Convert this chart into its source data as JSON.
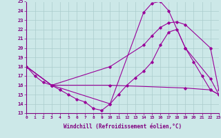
{
  "xlabel": "Windchill (Refroidissement éolien,°C)",
  "xlim": [
    0,
    23
  ],
  "ylim": [
    13,
    25
  ],
  "yticks": [
    13,
    14,
    15,
    16,
    17,
    18,
    19,
    20,
    21,
    22,
    23,
    24,
    25
  ],
  "xticks": [
    0,
    1,
    2,
    3,
    4,
    5,
    6,
    7,
    8,
    9,
    10,
    11,
    12,
    13,
    14,
    15,
    16,
    17,
    18,
    19,
    20,
    21,
    22,
    23
  ],
  "bg_color": "#cce8e8",
  "line_color": "#990099",
  "grid_color": "#aacccc",
  "lines": [
    {
      "x": [
        0,
        1,
        2,
        3,
        4,
        5,
        6,
        7,
        8,
        9,
        10,
        11,
        12,
        13,
        14,
        15,
        16,
        17,
        18,
        19,
        20,
        21,
        22,
        23
      ],
      "y": [
        18,
        17,
        16.3,
        16.0,
        15.5,
        15.0,
        14.5,
        14.2,
        13.5,
        13.3,
        14.0,
        15.0,
        16.0,
        16.8,
        17.5,
        18.5,
        20.3,
        21.7,
        22.0,
        20.0,
        18.5,
        17.0,
        15.5,
        15.0
      ]
    },
    {
      "x": [
        0,
        3,
        10,
        14,
        15,
        16,
        17,
        19,
        22,
        23
      ],
      "y": [
        18,
        16.0,
        14.0,
        23.8,
        24.8,
        25.0,
        24.0,
        20.0,
        16.7,
        15.0
      ]
    },
    {
      "x": [
        0,
        3,
        10,
        14,
        15,
        16,
        17,
        18,
        19,
        22,
        23
      ],
      "y": [
        18,
        16.0,
        18.0,
        20.3,
        21.3,
        22.2,
        22.7,
        22.8,
        22.5,
        20.0,
        15.5
      ]
    },
    {
      "x": [
        0,
        3,
        10,
        19,
        22,
        23
      ],
      "y": [
        18,
        16.0,
        16.0,
        15.7,
        15.5,
        15.0
      ]
    }
  ]
}
